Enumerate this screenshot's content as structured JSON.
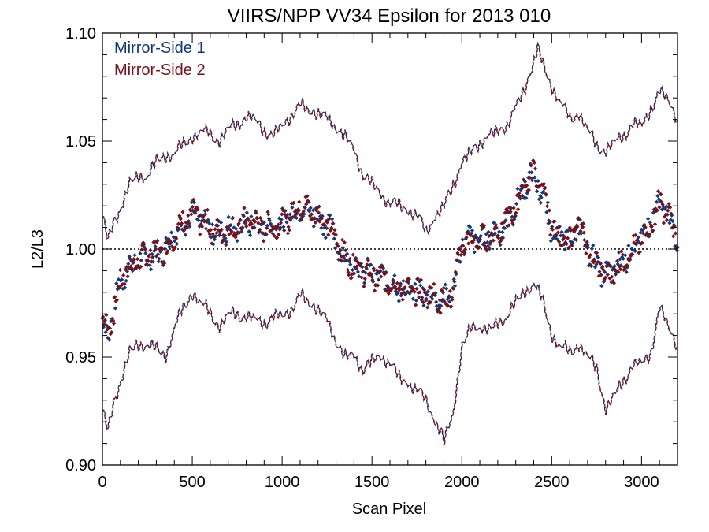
{
  "chart_data": {
    "type": "scatter",
    "title": "VIIRS/NPP VV34 Epsilon for 2013 010",
    "xlabel": "Scan Pixel",
    "ylabel": "L2/L3",
    "xlim": [
      0,
      3200
    ],
    "ylim": [
      0.9,
      1.1
    ],
    "x_ticks": [
      0,
      500,
      1000,
      1500,
      2000,
      2500,
      3000
    ],
    "y_ticks": [
      0.9,
      0.95,
      1.0,
      1.05,
      1.1
    ],
    "x_tick_labels": [
      "0",
      "500",
      "1000",
      "1500",
      "2000",
      "2500",
      "3000"
    ],
    "y_tick_labels": [
      "0.90",
      "0.95",
      "1.00",
      "1.05",
      "1.10"
    ],
    "reference_line": 1.0,
    "legend_position": "top-left",
    "series": [
      {
        "name": "Mirror-Side 1",
        "color": "#123a7a"
      },
      {
        "name": "Mirror-Side 2",
        "color": "#7a1018"
      }
    ],
    "mean_curve": {
      "x": [
        0,
        30,
        60,
        100,
        150,
        200,
        250,
        300,
        350,
        400,
        450,
        500,
        550,
        600,
        650,
        700,
        750,
        800,
        850,
        900,
        950,
        1000,
        1050,
        1100,
        1150,
        1200,
        1250,
        1300,
        1350,
        1400,
        1450,
        1500,
        1550,
        1600,
        1650,
        1700,
        1750,
        1800,
        1850,
        1900,
        1950,
        2000,
        2050,
        2100,
        2150,
        2200,
        2250,
        2300,
        2350,
        2400,
        2450,
        2500,
        2550,
        2600,
        2650,
        2700,
        2750,
        2800,
        2850,
        2900,
        2950,
        3000,
        3050,
        3100,
        3150,
        3200
      ],
      "y": [
        0.968,
        0.96,
        0.972,
        0.985,
        0.992,
        0.995,
        0.997,
        0.998,
        1.0,
        1.007,
        1.012,
        1.016,
        1.013,
        1.01,
        1.007,
        1.01,
        1.009,
        1.013,
        1.012,
        1.01,
        1.011,
        1.012,
        1.016,
        1.02,
        1.018,
        1.015,
        1.012,
        1.004,
        0.995,
        0.993,
        0.99,
        0.988,
        0.987,
        0.985,
        0.982,
        0.981,
        0.98,
        0.979,
        0.978,
        0.976,
        0.98,
        1.003,
        1.005,
        1.004,
        1.006,
        1.008,
        1.012,
        1.02,
        1.03,
        1.035,
        1.025,
        1.01,
        1.005,
        1.003,
        1.012,
        1.0,
        0.993,
        0.988,
        0.99,
        0.995,
        1.0,
        1.005,
        1.012,
        1.022,
        1.015,
        1.005
      ]
    },
    "upper_envelope": {
      "x": [
        0,
        30,
        60,
        100,
        150,
        200,
        250,
        300,
        350,
        400,
        450,
        500,
        550,
        600,
        650,
        700,
        750,
        800,
        850,
        900,
        950,
        1000,
        1050,
        1100,
        1150,
        1200,
        1250,
        1300,
        1350,
        1400,
        1450,
        1500,
        1550,
        1600,
        1650,
        1700,
        1750,
        1800,
        1850,
        1900,
        1950,
        2000,
        2050,
        2100,
        2150,
        2200,
        2250,
        2300,
        2350,
        2400,
        2420,
        2450,
        2500,
        2550,
        2600,
        2650,
        2700,
        2750,
        2800,
        2850,
        2900,
        2950,
        3000,
        3050,
        3100,
        3150,
        3200
      ],
      "y": [
        1.015,
        1.003,
        1.012,
        1.02,
        1.03,
        1.033,
        1.035,
        1.04,
        1.043,
        1.045,
        1.048,
        1.052,
        1.055,
        1.053,
        1.05,
        1.056,
        1.058,
        1.061,
        1.06,
        1.055,
        1.052,
        1.058,
        1.062,
        1.066,
        1.065,
        1.063,
        1.06,
        1.057,
        1.052,
        1.045,
        1.035,
        1.03,
        1.025,
        1.022,
        1.02,
        1.018,
        1.016,
        1.008,
        1.015,
        1.02,
        1.03,
        1.04,
        1.045,
        1.05,
        1.052,
        1.055,
        1.058,
        1.065,
        1.075,
        1.088,
        1.093,
        1.085,
        1.075,
        1.068,
        1.06,
        1.063,
        1.055,
        1.048,
        1.045,
        1.05,
        1.053,
        1.057,
        1.058,
        1.065,
        1.072,
        1.07,
        1.06
      ]
    },
    "lower_envelope": {
      "x": [
        0,
        30,
        60,
        100,
        150,
        200,
        250,
        300,
        350,
        400,
        450,
        500,
        550,
        600,
        650,
        700,
        750,
        800,
        850,
        900,
        950,
        1000,
        1050,
        1100,
        1150,
        1200,
        1250,
        1300,
        1350,
        1400,
        1450,
        1500,
        1550,
        1600,
        1650,
        1700,
        1750,
        1800,
        1850,
        1880,
        1900,
        1950,
        2000,
        2050,
        2100,
        2150,
        2200,
        2250,
        2300,
        2350,
        2400,
        2450,
        2500,
        2550,
        2600,
        2650,
        2700,
        2750,
        2800,
        2850,
        2900,
        2950,
        3000,
        3050,
        3100,
        3150,
        3200
      ],
      "y": [
        0.925,
        0.915,
        0.928,
        0.94,
        0.952,
        0.955,
        0.957,
        0.953,
        0.95,
        0.965,
        0.972,
        0.98,
        0.975,
        0.97,
        0.964,
        0.97,
        0.97,
        0.968,
        0.968,
        0.966,
        0.968,
        0.97,
        0.972,
        0.978,
        0.976,
        0.972,
        0.966,
        0.958,
        0.95,
        0.95,
        0.945,
        0.948,
        0.95,
        0.948,
        0.94,
        0.938,
        0.935,
        0.93,
        0.92,
        0.915,
        0.91,
        0.925,
        0.955,
        0.963,
        0.965,
        0.962,
        0.965,
        0.97,
        0.975,
        0.98,
        0.985,
        0.975,
        0.96,
        0.955,
        0.952,
        0.956,
        0.95,
        0.945,
        0.925,
        0.933,
        0.94,
        0.945,
        0.948,
        0.952,
        0.972,
        0.965,
        0.955
      ]
    }
  }
}
